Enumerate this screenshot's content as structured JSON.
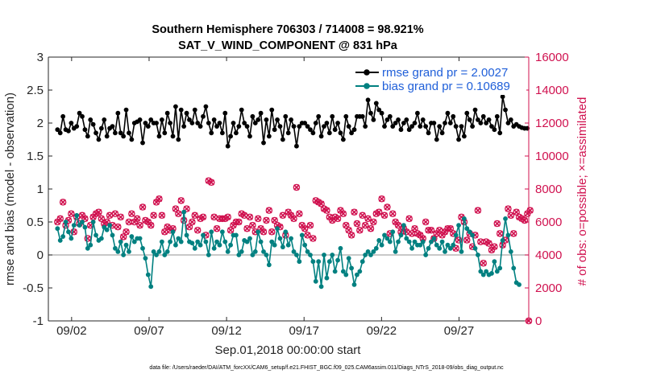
{
  "chart_data": {
    "type": "line",
    "title_line1": "Southern Hemisphere 706303 / 714008 = 98.921%",
    "title_line2": "SAT_V_WIND_COMPONENT @ 831 hPa",
    "xlabel": "Sep.01,2018 00:00:00 start",
    "ylabel_left": "rmse and bias (model - observation)",
    "ylabel_right": "# of obs: o=possible; ×=assimilated",
    "xlim": [
      0.5,
      31.5
    ],
    "ylim_left": [
      -1,
      3
    ],
    "ylim_right": [
      0,
      16000
    ],
    "x_tick_values": [
      2,
      7,
      12,
      17,
      22,
      27
    ],
    "x_tick_labels": [
      "09/02",
      "09/07",
      "09/12",
      "09/17",
      "09/22",
      "09/27"
    ],
    "y_left_ticks": [
      "-1",
      "-0.5",
      "0",
      "0.5",
      "1",
      "1.5",
      "2",
      "2.5",
      "3"
    ],
    "y_left_tick_values": [
      -1,
      -0.5,
      0,
      0.5,
      1,
      1.5,
      2,
      2.5,
      3
    ],
    "y_right_ticks": [
      "0",
      "2000",
      "4000",
      "6000",
      "8000",
      "10000",
      "12000",
      "14000",
      "16000"
    ],
    "y_right_tick_values": [
      0,
      2000,
      4000,
      6000,
      8000,
      10000,
      12000,
      14000,
      16000
    ],
    "legend": [
      "rmse grand pr = 2.0027",
      "bias grand pr = 0.10689"
    ],
    "footer": "data file: /Users/raeder/DAI/ATM_forcXX/CAM6_setup/f.e21.FHIST_BGC.f09_025.CAM6assim.011/Diags_NTrS_2018-09/obs_diag_output.nc",
    "colors": {
      "rmse": "#000000",
      "bias": "#008080",
      "obs": "#d0114f",
      "zero_line": "#a6a6a6",
      "legend_text": "#1f5fd9"
    },
    "series": [
      {
        "name": "rmse",
        "values": [
          1.9,
          1.85,
          2.1,
          1.9,
          1.88,
          2.0,
          1.92,
          1.95,
          2.15,
          2.1,
          1.9,
          1.8,
          2.05,
          1.98,
          1.85,
          1.75,
          1.92,
          2.05,
          1.8,
          1.92,
          1.95,
          1.85,
          2.15,
          1.85,
          1.8,
          2.2,
          1.85,
          1.75,
          2.0,
          2.02,
          2.05,
          1.7,
          2.0,
          1.95,
          2.05,
          2.0,
          2.0,
          1.8,
          2.05,
          1.85,
          2.15,
          2.0,
          1.8,
          2.25,
          1.75,
          2.2,
          1.95,
          2.15,
          2.05,
          2.0,
          2.2,
          2.0,
          1.95,
          2.1,
          2.25,
          2.0,
          1.85,
          2.05,
          1.95,
          2.0,
          1.85,
          2.15,
          1.65,
          1.8,
          2.0,
          1.85,
          1.95,
          2.2,
          2.0,
          1.95,
          1.8,
          2.1,
          2.0,
          2.05,
          2.15,
          1.7,
          2.05,
          1.8,
          2.2,
          1.9,
          2.05,
          1.95,
          1.75,
          2.1,
          1.85,
          2.05,
          1.95,
          1.65,
          1.95,
          2.0,
          2.0,
          1.95,
          1.9,
          1.85,
          2.0,
          2.1,
          1.8,
          1.95,
          2.0,
          1.85,
          2.1,
          1.9,
          2.0,
          1.85,
          1.75,
          2.1,
          1.95,
          1.85,
          1.9,
          2.1,
          2.1,
          2.1,
          1.95,
          2.35,
          2.15,
          2.05,
          2.3,
          2.2,
          2.15,
          1.95,
          2.05,
          2.1,
          1.95,
          2.0,
          2.05,
          1.9,
          2.0,
          2.05,
          1.9,
          1.95,
          2.0,
          2.15,
          1.95,
          2.05,
          1.95,
          1.85,
          2.0,
          2.0,
          1.75,
          1.95,
          1.85,
          2.0,
          2.15,
          2.0,
          2.1,
          1.95,
          1.75,
          1.95,
          1.8,
          2.15,
          2.05,
          1.95,
          2.2,
          2.05,
          2.0,
          2.1,
          2.0,
          2.05,
          1.95,
          1.9,
          2.1,
          1.85,
          2.4,
          2.2,
          2.0,
          2.05,
          1.95,
          1.98,
          1.95,
          1.93,
          1.92,
          1.92
        ]
      },
      {
        "name": "bias",
        "values": [
          0.4,
          0.22,
          0.28,
          0.5,
          0.35,
          0.25,
          0.45,
          0.6,
          0.45,
          0.5,
          0.42,
          0.1,
          0.15,
          0.5,
          0.3,
          0.22,
          0.25,
          0.42,
          0.38,
          0.45,
          0.3,
          0.1,
          0.05,
          0.2,
          0.0,
          0.15,
          0.05,
          0.28,
          0.2,
          0.25,
          0.25,
          0.1,
          -0.05,
          -0.3,
          -0.48,
          0.05,
          0.0,
          0.05,
          0.2,
          0.0,
          0.05,
          0.2,
          0.35,
          0.15,
          0.25,
          0.2,
          0.65,
          0.3,
          0.2,
          0.18,
          0.1,
          0.2,
          0.15,
          0.3,
          0.2,
          0.0,
          0.35,
          0.1,
          0.2,
          0.15,
          0.35,
          0.2,
          0.05,
          0.15,
          0.3,
          0.3,
          0.0,
          0.05,
          0.22,
          0.2,
          0.25,
          0.0,
          0.05,
          0.35,
          0.2,
          0.05,
          0.0,
          -0.15,
          0.2,
          0.15,
          0.4,
          0.25,
          0.12,
          0.35,
          0.15,
          0.25,
          0.05,
          0.0,
          -0.1,
          0.3,
          0.15,
          0.05,
          0.0,
          -0.1,
          -0.4,
          -0.1,
          -0.48,
          0.0,
          -0.35,
          -0.1,
          0.0,
          -0.25,
          -0.08,
          0.1,
          -0.25,
          -0.3,
          -0.05,
          -0.2,
          -0.45,
          -0.3,
          -0.25,
          -0.1,
          0.0,
          0.05,
          0.0,
          0.05,
          0.1,
          0.22,
          0.15,
          0.3,
          0.25,
          0.2,
          0.35,
          0.05,
          0.2,
          0.3,
          0.45,
          0.25,
          0.2,
          0.1,
          0.2,
          0.15,
          0.15,
          0.2,
          0.0,
          0.1,
          0.2,
          0.25,
          0.15,
          0.1,
          0.2,
          0.05,
          0.15,
          0.1,
          0.15,
          0.3,
          0.45,
          0.05,
          0.55,
          0.4,
          0.35,
          0.3,
          0.1,
          0.0,
          -0.25,
          -0.3,
          -0.25,
          -0.3,
          -0.28,
          -0.1,
          -0.25,
          -0.2,
          0.22,
          0.55,
          0.3,
          0.05,
          -0.2,
          -0.42,
          -0.45
        ]
      },
      {
        "name": "obs_possible",
        "values": [
          6000,
          6200,
          7200,
          5800,
          6100,
          6500,
          5400,
          6300,
          5900,
          6400,
          6200,
          5000,
          5800,
          6300,
          6500,
          6600,
          6200,
          5900,
          6000,
          6400,
          5800,
          6500,
          5700,
          6300,
          5100,
          5400,
          6000,
          6500,
          6000,
          6200,
          5800,
          6900,
          6100,
          6000,
          5800,
          6400,
          7200,
          7400,
          6400,
          5400,
          5700,
          5500,
          5600,
          6800,
          6500,
          7300,
          6100,
          6800,
          5700,
          6000,
          6400,
          5500,
          6200,
          6300,
          5200,
          8500,
          8400,
          6300,
          5600,
          6200,
          6200,
          6200,
          6300,
          5500,
          5800,
          6000,
          6000,
          6500,
          6400,
          5600,
          6300,
          5800,
          5400,
          6200,
          5600,
          5400,
          6100,
          6700,
          5400,
          6100,
          5800,
          5700,
          6400,
          5200,
          6600,
          6400,
          6200,
          8100,
          6500,
          5800,
          5600,
          5200,
          5800,
          5000,
          7300,
          7200,
          7100,
          6800,
          6700,
          6300,
          6100,
          6300,
          6200,
          6700,
          6500,
          5800,
          5500,
          5200,
          6600,
          5900,
          5500,
          6400,
          5800,
          6200,
          5600,
          6000,
          6500,
          6600,
          7400,
          6400,
          6900,
          5300,
          6500,
          6000,
          5800,
          5400,
          5600,
          5400,
          6200,
          5300,
          5600,
          5300,
          5200,
          5000,
          6000,
          5500,
          5500,
          5000,
          5300,
          5500,
          5200,
          5400,
          5600,
          5600,
          5300,
          4400,
          4900,
          6300,
          6000,
          4900,
          5300,
          4500,
          5200,
          6700,
          4800,
          3500,
          4800,
          4700,
          4300,
          4500,
          5900,
          5300,
          4600,
          4900,
          6800,
          6400,
          5300,
          6600,
          6300,
          6200,
          6100,
          6500,
          6700
        ]
      },
      {
        "name": "obs_assimilated",
        "values": [
          6000,
          6200,
          7200,
          5800,
          6100,
          6500,
          5400,
          6300,
          5900,
          6400,
          6200,
          5000,
          5800,
          6300,
          6500,
          6600,
          6200,
          5900,
          6000,
          6400,
          5800,
          6500,
          5700,
          6300,
          5100,
          5400,
          6000,
          6500,
          6000,
          6200,
          5800,
          6900,
          6100,
          6000,
          5800,
          6400,
          7200,
          7400,
          6400,
          5400,
          5700,
          5500,
          5600,
          6800,
          6500,
          7300,
          6100,
          6800,
          5700,
          6000,
          6400,
          5500,
          6200,
          6300,
          5200,
          8500,
          8400,
          6300,
          5600,
          6200,
          6200,
          6200,
          6300,
          5500,
          5800,
          6000,
          6000,
          6500,
          6400,
          5600,
          6300,
          5800,
          5400,
          6200,
          5600,
          5400,
          6100,
          6700,
          5400,
          6100,
          5800,
          5700,
          6400,
          5200,
          6600,
          6400,
          6200,
          8100,
          6500,
          5800,
          5600,
          5200,
          5800,
          5000,
          7300,
          7200,
          7100,
          6800,
          6700,
          6300,
          6100,
          6300,
          6200,
          6700,
          6500,
          5800,
          5500,
          5200,
          6600,
          5900,
          5500,
          6400,
          5800,
          6200,
          5600,
          6000,
          6500,
          6600,
          7400,
          6400,
          6900,
          5300,
          6500,
          6000,
          5800,
          5400,
          5600,
          5400,
          6200,
          5300,
          5600,
          5300,
          5200,
          5000,
          6000,
          5500,
          5500,
          5000,
          5300,
          5500,
          5200,
          5400,
          5600,
          5600,
          5300,
          4400,
          4900,
          6300,
          6000,
          4900,
          5300,
          4500,
          5200,
          6700,
          4800,
          3500,
          4800,
          4700,
          4300,
          4500,
          5900,
          5300,
          4600,
          4900,
          6800,
          6400,
          5300,
          6600,
          6300,
          6200,
          6100,
          6500,
          6700
        ]
      }
    ],
    "extra_point": {
      "x": 31.5,
      "possible": 0,
      "assimilated": 0
    }
  }
}
